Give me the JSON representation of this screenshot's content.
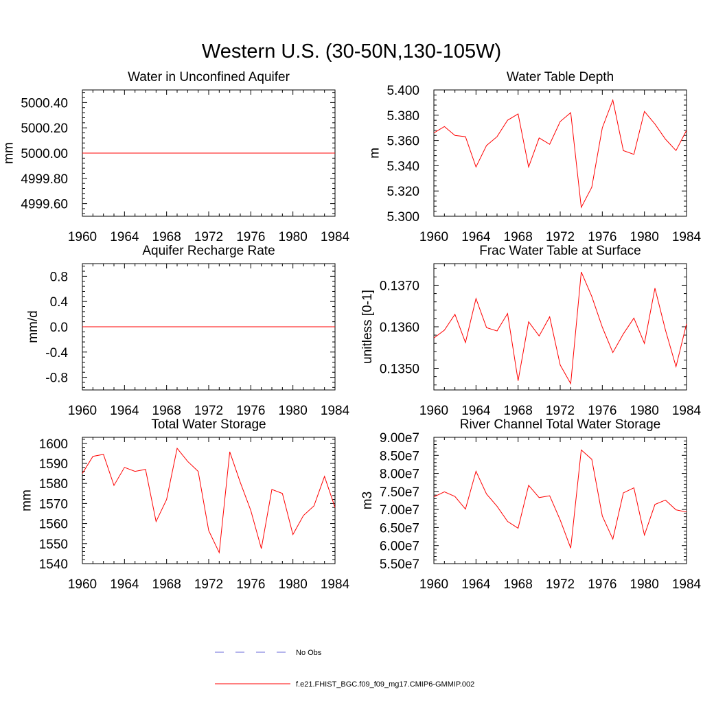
{
  "figure": {
    "title": "Western U.S. (30-50N,130-105W)"
  },
  "colors": {
    "model": "#ff0000",
    "obs": "#6a6ad8",
    "axis": "#000000"
  },
  "legend": {
    "entries": [
      {
        "label": "No Obs",
        "style": "dashed",
        "color": "#6a6ad8"
      },
      {
        "label": "f.e21.FHIST_BGC.f09_f09_mg17.CMIP6-GMMIP.002",
        "style": "solid",
        "color": "#ff0000"
      }
    ]
  },
  "chart_data": [
    {
      "type": "line",
      "title": "Water in Unconfined Aquifer",
      "xlabel": "",
      "ylabel": "mm",
      "xlim": [
        1960,
        1984
      ],
      "ylim": [
        4999.5,
        5000.5
      ],
      "xticks": [
        "1960",
        "1964",
        "1968",
        "1972",
        "1976",
        "1980",
        "1984"
      ],
      "yticks": [
        "4999.60",
        "4999.80",
        "5000.00",
        "5000.20",
        "5000.40"
      ],
      "x": [
        1960,
        1961,
        1962,
        1963,
        1964,
        1965,
        1966,
        1967,
        1968,
        1969,
        1970,
        1971,
        1972,
        1973,
        1974,
        1975,
        1976,
        1977,
        1978,
        1979,
        1980,
        1981,
        1982,
        1983,
        1984
      ],
      "series": [
        {
          "values": [
            5000,
            5000,
            5000,
            5000,
            5000,
            5000,
            5000,
            5000,
            5000,
            5000,
            5000,
            5000,
            5000,
            5000,
            5000,
            5000,
            5000,
            5000,
            5000,
            5000,
            5000,
            5000,
            5000,
            5000,
            5000
          ]
        }
      ]
    },
    {
      "type": "line",
      "title": "Water Table Depth",
      "xlabel": "",
      "ylabel": "m",
      "xlim": [
        1960,
        1984
      ],
      "ylim": [
        5.3,
        5.4
      ],
      "xticks": [
        "1960",
        "1964",
        "1968",
        "1972",
        "1976",
        "1980",
        "1984"
      ],
      "yticks": [
        "5.300",
        "5.320",
        "5.340",
        "5.360",
        "5.380",
        "5.400"
      ],
      "x": [
        1960,
        1961,
        1962,
        1963,
        1964,
        1965,
        1966,
        1967,
        1968,
        1969,
        1970,
        1971,
        1972,
        1973,
        1974,
        1975,
        1976,
        1977,
        1978,
        1979,
        1980,
        1981,
        1982,
        1983,
        1984
      ],
      "series": [
        {
          "values": [
            5.366,
            5.371,
            5.364,
            5.363,
            5.339,
            5.356,
            5.363,
            5.376,
            5.381,
            5.339,
            5.362,
            5.357,
            5.375,
            5.382,
            5.307,
            5.323,
            5.37,
            5.392,
            5.352,
            5.349,
            5.383,
            5.373,
            5.361,
            5.352,
            5.368
          ]
        }
      ]
    },
    {
      "type": "line",
      "title": "Aquifer Recharge Rate",
      "xlabel": "",
      "ylabel": "mm/d",
      "xlim": [
        1960,
        1984
      ],
      "ylim": [
        -1.0,
        1.0
      ],
      "xticks": [
        "1960",
        "1964",
        "1968",
        "1972",
        "1976",
        "1980",
        "1984"
      ],
      "yticks": [
        "-0.8",
        "-0.4",
        "0.0",
        "0.4",
        "0.8"
      ],
      "x": [
        1960,
        1961,
        1962,
        1963,
        1964,
        1965,
        1966,
        1967,
        1968,
        1969,
        1970,
        1971,
        1972,
        1973,
        1974,
        1975,
        1976,
        1977,
        1978,
        1979,
        1980,
        1981,
        1982,
        1983,
        1984
      ],
      "series": [
        {
          "values": [
            0,
            0,
            0,
            0,
            0,
            0,
            0,
            0,
            0,
            0,
            0,
            0,
            0,
            0,
            0,
            0,
            0,
            0,
            0,
            0,
            0,
            0,
            0,
            0,
            0
          ]
        }
      ]
    },
    {
      "type": "line",
      "title": "Frac Water Table at Surface",
      "xlabel": "",
      "ylabel": "unitless [0-1]",
      "xlim": [
        1960,
        1984
      ],
      "ylim": [
        0.13448,
        0.13752
      ],
      "xticks": [
        "1960",
        "1964",
        "1968",
        "1972",
        "1976",
        "1980",
        "1984"
      ],
      "yticks": [
        "0.1350",
        "0.1360",
        "0.1370"
      ],
      "x": [
        1960,
        1961,
        1962,
        1963,
        1964,
        1965,
        1966,
        1967,
        1968,
        1969,
        1970,
        1971,
        1972,
        1973,
        1974,
        1975,
        1976,
        1977,
        1978,
        1979,
        1980,
        1981,
        1982,
        1983,
        1984
      ],
      "series": [
        {
          "values": [
            0.13573,
            0.13592,
            0.1363,
            0.13562,
            0.13668,
            0.13598,
            0.1359,
            0.13632,
            0.1347,
            0.13612,
            0.13578,
            0.13624,
            0.13508,
            0.13463,
            0.13732,
            0.13673,
            0.13599,
            0.13538,
            0.13583,
            0.13621,
            0.1356,
            0.13693,
            0.13592,
            0.13504,
            0.13607
          ]
        }
      ]
    },
    {
      "type": "line",
      "title": "Total Water Storage",
      "xlabel": "",
      "ylabel": "mm",
      "xlim": [
        1960,
        1984
      ],
      "ylim": [
        1540,
        1603
      ],
      "xticks": [
        "1960",
        "1964",
        "1968",
        "1972",
        "1976",
        "1980",
        "1984"
      ],
      "yticks": [
        "1540",
        "1550",
        "1560",
        "1570",
        "1580",
        "1590",
        "1600"
      ],
      "x": [
        1960,
        1961,
        1962,
        1963,
        1964,
        1965,
        1966,
        1967,
        1968,
        1969,
        1970,
        1971,
        1972,
        1973,
        1974,
        1975,
        1976,
        1977,
        1978,
        1979,
        1980,
        1981,
        1982,
        1983,
        1984
      ],
      "series": [
        {
          "values": [
            1585,
            1593.5,
            1594.5,
            1579,
            1588,
            1586,
            1587,
            1561,
            1572,
            1597.5,
            1591,
            1586,
            1556.5,
            1545.5,
            1595.8,
            1580.5,
            1566.5,
            1547.5,
            1577,
            1575,
            1554.5,
            1564,
            1568.8,
            1583.5,
            1568
          ]
        }
      ]
    },
    {
      "type": "line",
      "title": "River Channel Total Water Storage",
      "xlabel": "",
      "ylabel": "m3",
      "xlim": [
        1960,
        1984
      ],
      "ylim": [
        55000000,
        90000000
      ],
      "xticks": [
        "1960",
        "1964",
        "1968",
        "1972",
        "1976",
        "1980",
        "1984"
      ],
      "yticks": [
        "5.50e7",
        "6.00e7",
        "6.50e7",
        "7.00e7",
        "7.50e7",
        "8.00e7",
        "8.50e7",
        "9.00e7"
      ],
      "x": [
        1960,
        1961,
        1962,
        1963,
        1964,
        1965,
        1966,
        1967,
        1968,
        1969,
        1970,
        1971,
        1972,
        1973,
        1974,
        1975,
        1976,
        1977,
        1978,
        1979,
        1980,
        1981,
        1982,
        1983,
        1984
      ],
      "series": [
        {
          "values": [
            73500000,
            74900000,
            73600000,
            70100000,
            80600000,
            74300000,
            70900000,
            66700000,
            64800000,
            76700000,
            73300000,
            73800000,
            67100000,
            59300000,
            86500000,
            83900000,
            68200000,
            61800000,
            74600000,
            76000000,
            62900000,
            71400000,
            72600000,
            69900000,
            69300000
          ]
        }
      ]
    }
  ]
}
